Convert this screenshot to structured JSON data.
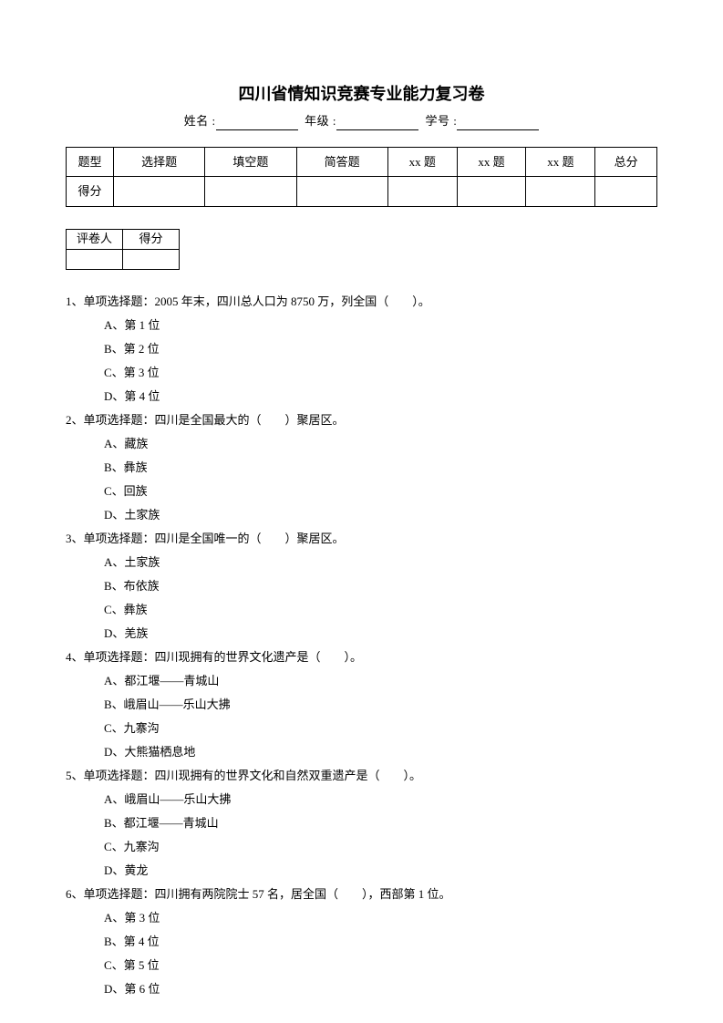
{
  "title": "四川省情知识竞赛专业能力复习卷",
  "info": {
    "name_label": "姓名 :",
    "grade_label": "年级 :",
    "id_label": "学号 :"
  },
  "score_table": {
    "row1": [
      "题型",
      "选择题",
      "填空题",
      "简答题",
      "xx 题",
      "xx 题",
      "xx 题",
      "总分"
    ],
    "row2_label": "得分"
  },
  "grader_table": {
    "c1": "评卷人",
    "c2": "得分"
  },
  "questions": [
    {
      "num": "1、",
      "stem": "单项选择题：2005 年末，四川总人口为 8750 万，列全国（　　）。",
      "opts": [
        "A、第 1 位",
        "B、第 2 位",
        "C、第 3 位",
        "D、第 4 位"
      ]
    },
    {
      "num": "2、",
      "stem": "单项选择题：四川是全国最大的（　　）聚居区。",
      "opts": [
        "A、藏族",
        "B、彝族",
        "C、回族",
        "D、土家族"
      ]
    },
    {
      "num": "3、",
      "stem": "单项选择题：四川是全国唯一的（　　）聚居区。",
      "opts": [
        "A、土家族",
        "B、布依族",
        "C、彝族",
        "D、羌族"
      ]
    },
    {
      "num": "4、",
      "stem": "单项选择题：四川现拥有的世界文化遗产是（　　）。",
      "opts": [
        "A、都江堰——青城山",
        "B、峨眉山——乐山大拂",
        "C、九寨沟",
        "D、大熊猫栖息地"
      ]
    },
    {
      "num": "5、",
      "stem": "单项选择题：四川现拥有的世界文化和自然双重遗产是（　　）。",
      "opts": [
        "A、峨眉山——乐山大拂",
        "B、都江堰——青城山",
        "C、九寨沟",
        "D、黄龙"
      ]
    },
    {
      "num": "6、",
      "stem": "单项选择题：四川拥有两院院士 57 名，居全国（　　），西部第 1 位。",
      "opts": [
        "A、第 3 位",
        "B、第 4 位",
        "C、第 5 位",
        "D、第 6 位"
      ]
    }
  ]
}
